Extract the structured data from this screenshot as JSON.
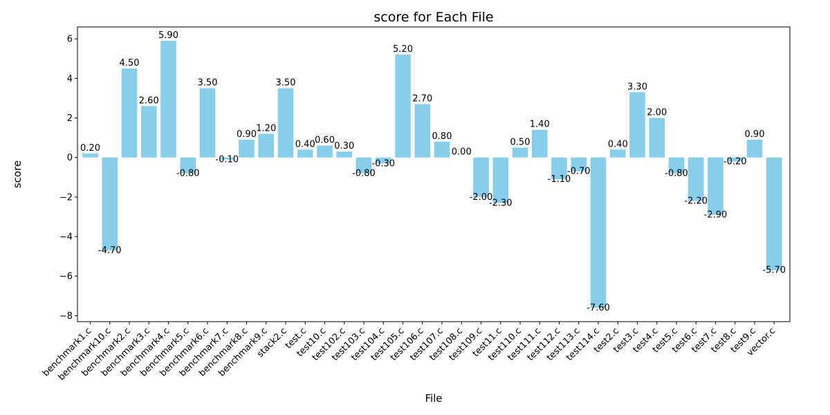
{
  "chart_data": {
    "type": "bar",
    "title": "score for Each File",
    "xlabel": "File",
    "ylabel": "score",
    "ylim": [
      -8.3,
      6.6
    ],
    "yticks": [
      -8,
      -6,
      -4,
      -2,
      0,
      2,
      4,
      6
    ],
    "bar_color": "#87ceeb",
    "grid": false,
    "categories": [
      "benchmark1.c",
      "benchmark10.c",
      "benchmark2.c",
      "benchmark3.c",
      "benchmark4.c",
      "benchmark5.c",
      "benchmark6.c",
      "benchmark7.c",
      "benchmark8.c",
      "benchmark9.c",
      "stack2.c",
      "test.c",
      "test10.c",
      "test102.c",
      "test103.c",
      "test104.c",
      "test105.c",
      "test106.c",
      "test107.c",
      "test108.c",
      "test109.c",
      "test11.c",
      "test110.c",
      "test111.c",
      "test112.c",
      "test113.c",
      "test114.c",
      "test2.c",
      "test3.c",
      "test4.c",
      "test5.c",
      "test6.c",
      "test7.c",
      "test8.c",
      "test9.c",
      "vector.c"
    ],
    "values": [
      0.2,
      -4.7,
      4.5,
      2.6,
      5.9,
      -0.8,
      3.5,
      -0.1,
      0.9,
      1.2,
      3.5,
      0.4,
      0.6,
      0.3,
      -0.8,
      -0.3,
      5.2,
      2.7,
      0.8,
      0.0,
      -2.0,
      -2.3,
      0.5,
      1.4,
      -1.1,
      -0.7,
      -7.6,
      0.4,
      3.3,
      2.0,
      -0.8,
      -2.2,
      -2.9,
      -0.2,
      0.9,
      -5.7
    ],
    "value_labels": [
      "0.20",
      "-4.70",
      "4.50",
      "2.60",
      "5.90",
      "-0.80",
      "3.50",
      "-0.10",
      "0.90",
      "1.20",
      "3.50",
      "0.40",
      "0.60",
      "0.30",
      "-0.80",
      "-0.30",
      "5.20",
      "2.70",
      "0.80",
      "0.00",
      "-2.00",
      "-2.30",
      "0.50",
      "1.40",
      "-1.10",
      "-0.70",
      "-7.60",
      "0.40",
      "3.30",
      "2.00",
      "-0.80",
      "-2.20",
      "-2.90",
      "-0.20",
      "0.90",
      "-5.70"
    ]
  }
}
